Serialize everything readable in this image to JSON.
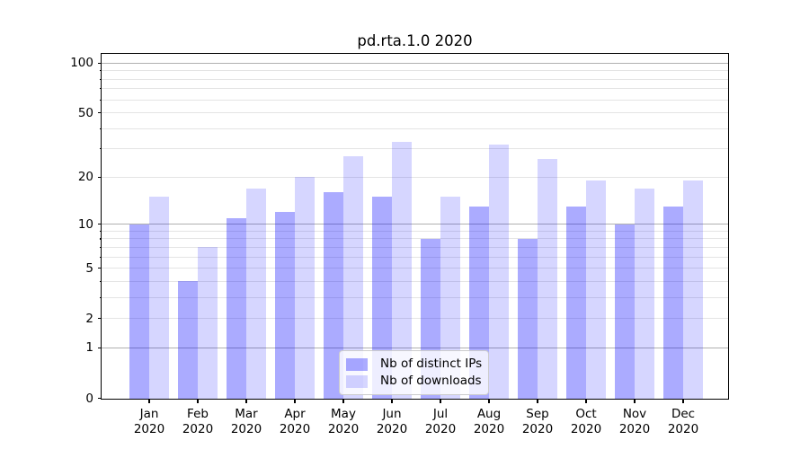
{
  "chart_data": {
    "type": "bar",
    "title": "pd.rta.1.0 2020",
    "categories": [
      "Jan",
      "Feb",
      "Mar",
      "Apr",
      "May",
      "Jun",
      "Jul",
      "Aug",
      "Sep",
      "Oct",
      "Nov",
      "Dec"
    ],
    "category_subline": "2020",
    "series": [
      {
        "name": "Nb of distinct IPs",
        "color": "rgba(0,0,255,0.33)",
        "values": [
          10,
          4,
          11,
          12,
          16,
          15,
          8,
          13,
          8,
          13,
          10,
          13
        ]
      },
      {
        "name": "Nb of downloads",
        "color": "rgba(0,0,255,0.16)",
        "values": [
          15,
          7,
          17,
          20,
          27,
          33,
          15,
          32,
          26,
          19,
          17,
          19
        ]
      }
    ],
    "y_axis": {
      "scale": "log1p",
      "tick_labels": [
        "0",
        "1",
        "2",
        "5",
        "10",
        "20",
        "50",
        "100"
      ],
      "tick_values": [
        0,
        1,
        2,
        5,
        10,
        20,
        50,
        100
      ],
      "major_grid_values": [
        1,
        10,
        100
      ],
      "minor_grid_values": [
        2,
        3,
        4,
        5,
        6,
        7,
        8,
        9,
        20,
        30,
        40,
        50,
        60,
        70,
        80,
        90
      ],
      "range": [
        0,
        110
      ]
    },
    "grid": true,
    "legend": {
      "position": "lower center",
      "entries": [
        "Nb of distinct IPs",
        "Nb of downloads"
      ]
    }
  },
  "colors": {
    "major_grid": "#b0b0b0",
    "minor_grid": "#e4e4e4",
    "spine": "#000000",
    "legend_border": "#cccccc"
  }
}
